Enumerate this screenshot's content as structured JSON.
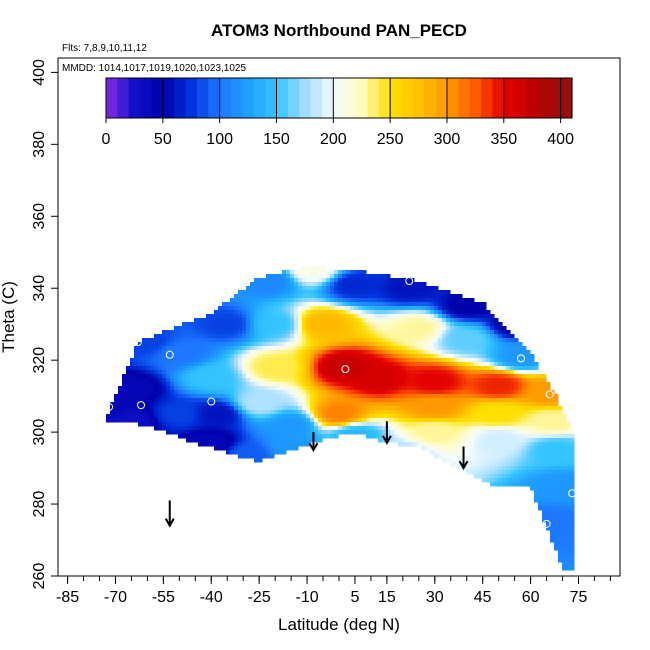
{
  "chart_data": {
    "type": "heatmap",
    "title": "ATOM3 Northbound PAN_PECD",
    "annotations": [
      "Flts: 7,8,9,10,11,12",
      "MMDD: 1014,1017,1019,1020,1023,1025"
    ],
    "xlabel": "Latitude (deg N)",
    "ylabel": "Theta (C)",
    "xlim": [
      -88,
      88
    ],
    "ylim": [
      260,
      404
    ],
    "x_ticks": [
      -85,
      -70,
      -55,
      -40,
      -25,
      -10,
      5,
      15,
      30,
      45,
      60,
      75
    ],
    "x_minor_step": 5,
    "y_ticks": [
      260,
      280,
      300,
      320,
      340,
      360,
      380,
      400
    ],
    "colorbar": {
      "min": 0,
      "max": 410,
      "ticks": [
        0,
        50,
        100,
        150,
        200,
        250,
        300,
        350,
        400
      ],
      "stops": [
        {
          "v": 0,
          "color": "#8a2be2"
        },
        {
          "v": 25,
          "color": "#1010cc"
        },
        {
          "v": 50,
          "color": "#0000aa"
        },
        {
          "v": 75,
          "color": "#0033dd"
        },
        {
          "v": 100,
          "color": "#1e78ff"
        },
        {
          "v": 125,
          "color": "#1ea0ff"
        },
        {
          "v": 150,
          "color": "#33c4ff"
        },
        {
          "v": 175,
          "color": "#9fdcff"
        },
        {
          "v": 200,
          "color": "#f4fbff"
        },
        {
          "v": 225,
          "color": "#fffbc0"
        },
        {
          "v": 250,
          "color": "#ffe000"
        },
        {
          "v": 275,
          "color": "#ffc000"
        },
        {
          "v": 300,
          "color": "#ff9a00"
        },
        {
          "v": 325,
          "color": "#ff5a00"
        },
        {
          "v": 350,
          "color": "#e30000"
        },
        {
          "v": 375,
          "color": "#c00000"
        },
        {
          "v": 410,
          "color": "#901010"
        }
      ]
    },
    "anchors": [
      {
        "x": -8,
        "y": 345,
        "v": 210
      },
      {
        "x": -22,
        "y": 342,
        "v": 110
      },
      {
        "x": 5,
        "y": 341,
        "v": 70
      },
      {
        "x": -5,
        "y": 330,
        "v": 280
      },
      {
        "x": 2,
        "y": 318,
        "v": 370
      },
      {
        "x": 12,
        "y": 315,
        "v": 360
      },
      {
        "x": 30,
        "y": 314,
        "v": 350
      },
      {
        "x": 50,
        "y": 313,
        "v": 340
      },
      {
        "x": 66,
        "y": 311,
        "v": 300
      },
      {
        "x": 0,
        "y": 305,
        "v": 310
      },
      {
        "x": 30,
        "y": 307,
        "v": 300
      },
      {
        "x": 50,
        "y": 305,
        "v": 250
      },
      {
        "x": 67,
        "y": 303,
        "v": 230
      },
      {
        "x": 30,
        "y": 300,
        "v": 230
      },
      {
        "x": 50,
        "y": 298,
        "v": 190
      },
      {
        "x": 68,
        "y": 295,
        "v": 150
      },
      {
        "x": 70,
        "y": 285,
        "v": 120
      },
      {
        "x": 66,
        "y": 275,
        "v": 100
      },
      {
        "x": 25,
        "y": 329,
        "v": 230
      },
      {
        "x": 40,
        "y": 326,
        "v": 160
      },
      {
        "x": 57,
        "y": 321,
        "v": 120
      },
      {
        "x": 22,
        "y": 340,
        "v": 60
      },
      {
        "x": 40,
        "y": 335,
        "v": 50
      },
      {
        "x": 55,
        "y": 330,
        "v": 50
      },
      {
        "x": -20,
        "y": 318,
        "v": 240
      },
      {
        "x": -20,
        "y": 330,
        "v": 150
      },
      {
        "x": -25,
        "y": 308,
        "v": 180
      },
      {
        "x": -15,
        "y": 302,
        "v": 120
      },
      {
        "x": -15,
        "y": 296,
        "v": 120
      },
      {
        "x": -35,
        "y": 330,
        "v": 80
      },
      {
        "x": -50,
        "y": 322,
        "v": 100
      },
      {
        "x": -40,
        "y": 315,
        "v": 150
      },
      {
        "x": -38,
        "y": 305,
        "v": 60
      },
      {
        "x": -50,
        "y": 305,
        "v": 80
      },
      {
        "x": -60,
        "y": 325,
        "v": 80
      },
      {
        "x": -65,
        "y": 312,
        "v": 40
      },
      {
        "x": -72,
        "y": 307,
        "v": 40
      },
      {
        "x": -65,
        "y": 303,
        "v": 30
      },
      {
        "x": -40,
        "y": 297,
        "v": 40
      },
      {
        "x": -28,
        "y": 294,
        "v": 90
      },
      {
        "x": 5,
        "y": 299,
        "v": 140
      },
      {
        "x": 20,
        "y": 294,
        "v": 180
      }
    ],
    "domain_polygon": [
      [
        -72,
        306
      ],
      [
        -63,
        325
      ],
      [
        -55,
        328
      ],
      [
        -40,
        333
      ],
      [
        -25,
        343
      ],
      [
        -10,
        346
      ],
      [
        5,
        345
      ],
      [
        25,
        342
      ],
      [
        45,
        336
      ],
      [
        60,
        322
      ],
      [
        68,
        310
      ],
      [
        73,
        300
      ],
      [
        73,
        262
      ],
      [
        70,
        262
      ],
      [
        60,
        285
      ],
      [
        48,
        285
      ],
      [
        35,
        291
      ],
      [
        25,
        296
      ],
      [
        15,
        297
      ],
      [
        5,
        300
      ],
      [
        -5,
        298
      ],
      [
        -25,
        292
      ],
      [
        -30,
        293
      ],
      [
        -45,
        297
      ],
      [
        -60,
        302
      ],
      [
        -73,
        303
      ]
    ],
    "flight_points": [
      {
        "x": -72,
        "y": 307
      },
      {
        "x": -63,
        "y": 325
      },
      {
        "x": -62,
        "y": 307.5
      },
      {
        "x": -53,
        "y": 321.5
      },
      {
        "x": -40,
        "y": 308.5
      },
      {
        "x": -10,
        "y": 345
      },
      {
        "x": -5,
        "y": 344.5
      },
      {
        "x": 2,
        "y": 317.5
      },
      {
        "x": 22,
        "y": 342
      },
      {
        "x": 57,
        "y": 320.5
      },
      {
        "x": 66,
        "y": 310.5
      },
      {
        "x": 73,
        "y": 283
      },
      {
        "x": 65,
        "y": 274.5
      }
    ],
    "arrows": [
      {
        "x": -53,
        "y_top": 281,
        "y_bottom": 274
      },
      {
        "x": -8,
        "y_top": 300,
        "y_bottom": 295
      },
      {
        "x": 15,
        "y_top": 303,
        "y_bottom": 297
      },
      {
        "x": 39,
        "y_top": 296,
        "y_bottom": 290
      }
    ]
  }
}
